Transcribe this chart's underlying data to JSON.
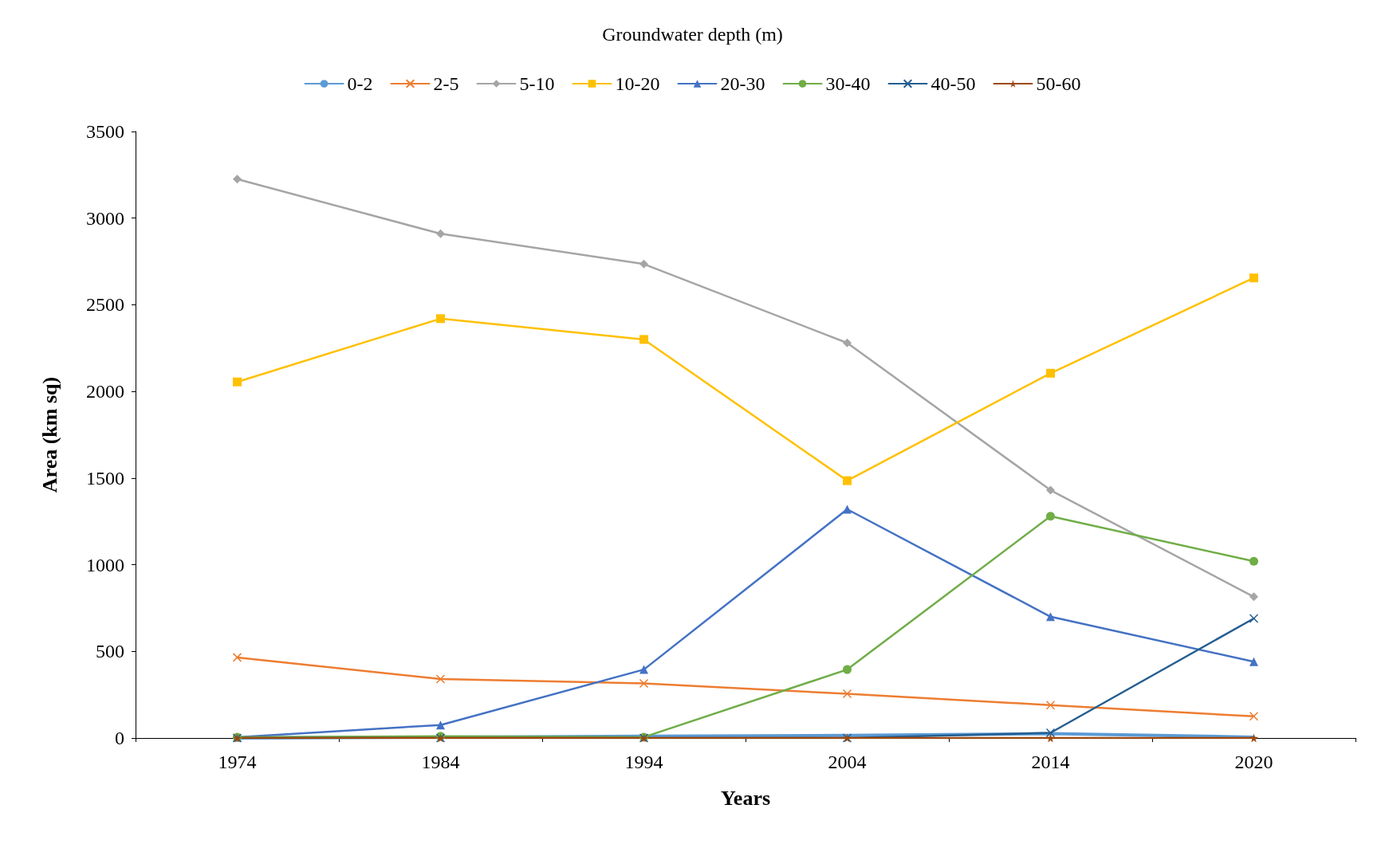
{
  "chart_data": {
    "type": "line",
    "legend_title": "Groundwater depth (m)",
    "xlabel": "Years",
    "ylabel": "Area (km sq)",
    "categories": [
      "1974",
      "1984",
      "1994",
      "2004",
      "2014",
      "2020"
    ],
    "ylim": [
      0,
      3500
    ],
    "yticks": [
      0,
      500,
      1000,
      1500,
      2000,
      2500,
      3000,
      3500
    ],
    "grid": false,
    "legend": "top",
    "series": [
      {
        "name": "0-2",
        "color": "#5b9bd5",
        "marker": "none",
        "values": [
          0,
          5,
          10,
          15,
          25,
          5
        ]
      },
      {
        "name": "2-5",
        "color": "#ed7d31",
        "marker": "cross",
        "values": [
          465,
          340,
          315,
          255,
          190,
          125
        ]
      },
      {
        "name": "5-10",
        "color": "#a5a5a5",
        "marker": "diamond",
        "values": [
          3225,
          2910,
          2735,
          2280,
          1430,
          815
        ]
      },
      {
        "name": "10-20",
        "color": "#ffc000",
        "marker": "square",
        "values": [
          2055,
          2420,
          2300,
          1485,
          2105,
          2655
        ]
      },
      {
        "name": "20-30",
        "color": "#4472c4",
        "marker": "triangle",
        "values": [
          5,
          75,
          395,
          1320,
          700,
          440
        ]
      },
      {
        "name": "30-40",
        "color": "#70ad47",
        "marker": "circle",
        "values": [
          5,
          10,
          5,
          395,
          1280,
          1020
        ]
      },
      {
        "name": "40-50",
        "color": "#255e91",
        "marker": "cross",
        "values": [
          0,
          0,
          0,
          0,
          30,
          690
        ]
      },
      {
        "name": "50-60",
        "color": "#9e480e",
        "marker": "star",
        "values": [
          0,
          0,
          0,
          0,
          0,
          0
        ]
      }
    ]
  }
}
